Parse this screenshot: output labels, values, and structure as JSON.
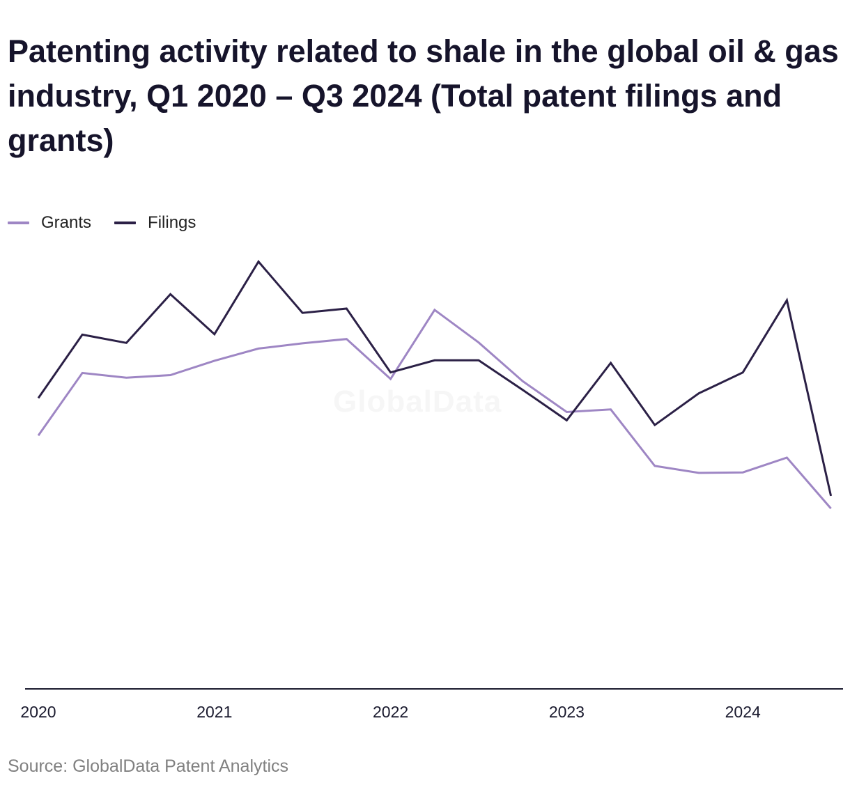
{
  "chart_data": {
    "type": "line",
    "title": "Patenting activity related to shale in the global oil & gas industry, Q1 2020 – Q3 2024 (Total patent filings and grants)",
    "xlabel": "",
    "ylabel": "",
    "x": [
      "Q1 2020",
      "Q2 2020",
      "Q3 2020",
      "Q4 2020",
      "Q1 2021",
      "Q2 2021",
      "Q3 2021",
      "Q4 2021",
      "Q1 2022",
      "Q2 2022",
      "Q3 2022",
      "Q4 2022",
      "Q1 2023",
      "Q2 2023",
      "Q3 2023",
      "Q4 2023",
      "Q1 2024",
      "Q2 2024",
      "Q3 2024"
    ],
    "x_tick_labels": [
      "2020",
      "2021",
      "2022",
      "2023",
      "2024"
    ],
    "ylim": [
      0,
      100
    ],
    "grid": false,
    "legend_position": "top-left",
    "series": [
      {
        "name": "Grants",
        "color": "#9e86c4",
        "values": [
          58.3,
          72.7,
          71.6,
          72.2,
          75.5,
          78.3,
          79.5,
          80.5,
          71.3,
          87.2,
          79.7,
          70.8,
          63.7,
          64.3,
          51.3,
          49.7,
          49.8,
          53.2,
          41.5
        ]
      },
      {
        "name": "Filings",
        "color": "#2b2046",
        "values": [
          66.9,
          81.5,
          79.6,
          90.8,
          81.6,
          98.3,
          86.5,
          87.5,
          72.8,
          75.6,
          75.6,
          68.8,
          61.8,
          75.0,
          60.7,
          68.0,
          72.8,
          89.4,
          44.4
        ]
      }
    ]
  },
  "source": "Source: GlobalData Patent Analytics",
  "watermark": "GlobalData"
}
